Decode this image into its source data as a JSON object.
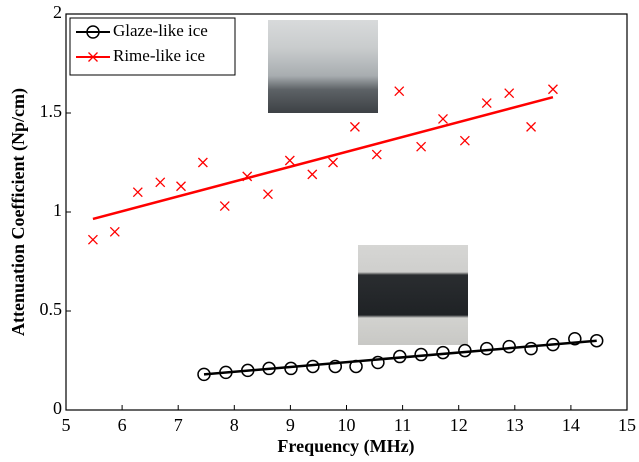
{
  "chart_data": {
    "type": "scatter",
    "xlabel": "Frequency (MHz)",
    "ylabel": "Attenuation Coefficient (Np/cm)",
    "xlim": [
      5,
      15
    ],
    "xticks": [
      5,
      6,
      7,
      8,
      9,
      10,
      11,
      12,
      13,
      14,
      15
    ],
    "ylim": [
      0,
      2
    ],
    "yticks": [
      0,
      0.5,
      1,
      1.5,
      2
    ],
    "legend": "upper left",
    "series": [
      {
        "name": "Glaze-like ice",
        "color": "#000000",
        "marker": "circle",
        "x": [
          7.46,
          7.85,
          8.24,
          8.62,
          9.01,
          9.4,
          9.8,
          10.17,
          10.56,
          10.95,
          11.33,
          11.72,
          12.11,
          12.5,
          12.9,
          13.29,
          13.68,
          14.07,
          14.46
        ],
        "values": [
          0.18,
          0.19,
          0.2,
          0.21,
          0.21,
          0.22,
          0.22,
          0.22,
          0.24,
          0.27,
          0.28,
          0.29,
          0.3,
          0.31,
          0.32,
          0.31,
          0.33,
          0.36,
          0.35
        ],
        "fit_x": [
          7.46,
          14.46
        ],
        "fit_y": [
          0.18,
          0.35
        ]
      },
      {
        "name": "Rime-like ice",
        "color": "#ff0000",
        "marker": "x",
        "x": [
          5.48,
          5.87,
          6.28,
          6.68,
          7.05,
          7.44,
          7.83,
          8.23,
          8.6,
          8.99,
          9.39,
          9.76,
          10.15,
          10.54,
          10.94,
          11.33,
          11.72,
          12.11,
          12.5,
          12.9,
          13.29,
          13.68
        ],
        "values": [
          0.86,
          0.9,
          1.1,
          1.15,
          1.13,
          1.25,
          1.03,
          1.18,
          1.09,
          1.26,
          1.19,
          1.25,
          1.43,
          1.29,
          1.61,
          1.33,
          1.47,
          1.36,
          1.55,
          1.6,
          1.43,
          1.62
        ],
        "fit_x": [
          5.48,
          13.68
        ],
        "fit_y": [
          0.965,
          1.58
        ]
      }
    ]
  }
}
